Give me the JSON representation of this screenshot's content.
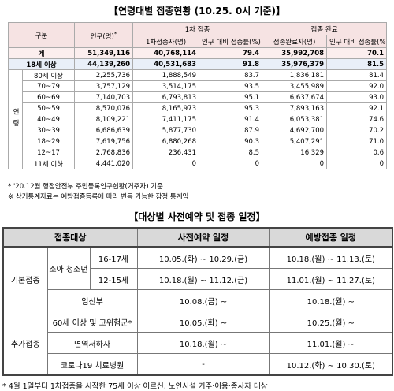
{
  "title1": "【연령대별 접종현황 (10.25. 0시 기준)】",
  "table1": {
    "header": {
      "group": "구분",
      "population": "인구(명)",
      "population_mark": "*",
      "first": "1차 접종",
      "first_count": "1차접종자(명)",
      "first_rate": "인구 대비 접종률(%)",
      "full": "접종 완료",
      "full_count": "접종완료자(명)",
      "full_rate": "인구 대비 접종률(%)"
    },
    "age_label": "연령",
    "rows": [
      [
        "계",
        "51,349,116",
        "40,768,114",
        "79.4",
        "35,992,708",
        "70.1"
      ],
      [
        "18세 이상",
        "44,139,260",
        "40,531,683",
        "91.8",
        "35,976,379",
        "81.5"
      ],
      [
        "80세 이상",
        "2,255,736",
        "1,888,549",
        "83.7",
        "1,836,181",
        "81.4"
      ],
      [
        "70~79",
        "3,757,129",
        "3,514,175",
        "93.5",
        "3,455,989",
        "92.0"
      ],
      [
        "60~69",
        "7,140,703",
        "6,793,813",
        "95.1",
        "6,637,674",
        "93.0"
      ],
      [
        "50~59",
        "8,570,076",
        "8,165,973",
        "95.3",
        "7,893,163",
        "92.1"
      ],
      [
        "40~49",
        "8,109,221",
        "7,411,175",
        "91.4",
        "6,053,381",
        "74.6"
      ],
      [
        "30~39",
        "6,686,639",
        "5,877,730",
        "87.9",
        "4,692,700",
        "70.2"
      ],
      [
        "18~29",
        "7,619,756",
        "6,880,268",
        "90.3",
        "5,407,291",
        "71.0"
      ],
      [
        "12~17",
        "2,768,836",
        "236,431",
        "8.5",
        "16,329",
        "0.6"
      ],
      [
        "11세 이하",
        "4,441,020",
        "0",
        "0",
        "0",
        "0"
      ]
    ]
  },
  "notes": [
    "* '20.12월 행정안전부 주민등록인구현황(거주자) 기준",
    "※ 상기통계자료는 예방접종등록에 따라 변동 가능한 잠정 통계임"
  ],
  "title2": "【대상별 사전예약 및 접종 일정】",
  "table2": {
    "header": [
      "접종대상",
      "사전예약 일정",
      "예방접종 일정"
    ],
    "basic": "기본접종",
    "youth": "소아 청소년",
    "booster": "추가접종",
    "rows": [
      [
        "16-17세",
        "10.05.(화) ~ 10.29.(금)",
        "10.18.(월) ~ 11.13.(토)"
      ],
      [
        "12-15세",
        "10.18.(월) ~ 11.12.(금)",
        "11.01.(월) ~ 11.27.(토)"
      ],
      [
        "임신부",
        "10.08.(금) ~",
        "10.18.(월) ~"
      ],
      [
        "60세 이상 및 고위험군*",
        "10.05.(화) ~",
        "10.25.(월) ~"
      ],
      [
        "면역저하자",
        "10.18.(월) ~",
        "11.01.(월) ~"
      ],
      [
        "코로나19 치료병원",
        "-",
        "10.12.(화) ~ 10.30.(토)"
      ]
    ]
  },
  "footnote": "* 4월 1일부터 1차접종을 시작한 75세 이상 어르신, 노인시설 거주·이용·종사자 대상"
}
